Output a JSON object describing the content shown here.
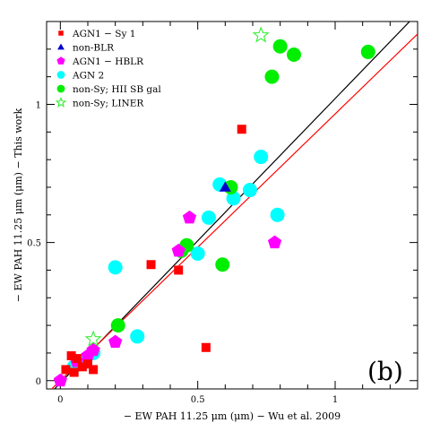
{
  "chart_data": {
    "type": "scatter",
    "panel_label": "(b)",
    "xlabel": "− EW PAH 11.25 μm (μm) − Wu et al. 2009",
    "ylabel": "− EW PAH 11.25 μm (μm) − This work",
    "xlim": [
      -0.05,
      1.3
    ],
    "ylim": [
      -0.03,
      1.3
    ],
    "xticks": [
      {
        "v": 0,
        "label": "0"
      },
      {
        "v": 0.5,
        "label": "0.5"
      },
      {
        "v": 1,
        "label": "1"
      }
    ],
    "yticks": [
      {
        "v": 0,
        "label": "0"
      },
      {
        "v": 0.5,
        "label": "0.5"
      },
      {
        "v": 1,
        "label": "1"
      }
    ],
    "legend_position": "top-left",
    "lines": [
      {
        "name": "",
        "color": "#000000",
        "x": [
          -0.05,
          1.3
        ],
        "y": [
          -0.06,
          1.33
        ]
      },
      {
        "name": "",
        "color": "#ff0000",
        "x": [
          -0.05,
          1.3
        ],
        "y": [
          -0.048,
          1.255
        ]
      }
    ],
    "series": [
      {
        "name": "AGN1 − Sy 1",
        "marker": "square",
        "color": "#ff0000",
        "points": [
          [
            0.02,
            0.04
          ],
          [
            0.04,
            0.09
          ],
          [
            0.06,
            0.08
          ],
          [
            0.05,
            0.03
          ],
          [
            0.08,
            0.05
          ],
          [
            0.1,
            0.06
          ],
          [
            0.12,
            0.04
          ],
          [
            0.33,
            0.42
          ],
          [
            0.43,
            0.4
          ],
          [
            0.53,
            0.12
          ],
          [
            0.66,
            0.91
          ]
        ]
      },
      {
        "name": "non-BLR",
        "marker": "triangle",
        "color": "#0000cc",
        "points": [
          [
            0.6,
            0.7
          ]
        ]
      },
      {
        "name": "AGN1 − HBLR",
        "marker": "pentagon",
        "color": "#ff00ff",
        "points": [
          [
            0.0,
            0.0
          ],
          [
            0.06,
            0.07
          ],
          [
            0.1,
            0.09
          ],
          [
            0.12,
            0.11
          ],
          [
            0.2,
            0.14
          ],
          [
            0.43,
            0.47
          ],
          [
            0.47,
            0.59
          ],
          [
            0.78,
            0.5
          ]
        ]
      },
      {
        "name": "AGN 2",
        "marker": "circle",
        "color": "#00ffff",
        "points": [
          [
            0.05,
            0.05
          ],
          [
            0.07,
            0.06
          ],
          [
            0.08,
            0.07
          ],
          [
            0.12,
            0.1
          ],
          [
            0.2,
            0.41
          ],
          [
            0.28,
            0.16
          ],
          [
            0.5,
            0.46
          ],
          [
            0.54,
            0.59
          ],
          [
            0.58,
            0.71
          ],
          [
            0.63,
            0.66
          ],
          [
            0.69,
            0.69
          ],
          [
            0.73,
            0.81
          ],
          [
            0.79,
            0.6
          ]
        ]
      },
      {
        "name": "non-Sy; HII SB gal",
        "marker": "circle",
        "color": "#00ee00",
        "points": [
          [
            0.21,
            0.2
          ],
          [
            0.44,
            0.47
          ],
          [
            0.46,
            0.49
          ],
          [
            0.59,
            0.42
          ],
          [
            0.62,
            0.7
          ],
          [
            0.77,
            1.1
          ],
          [
            0.8,
            1.21
          ],
          [
            0.85,
            1.18
          ],
          [
            1.12,
            1.19
          ]
        ]
      },
      {
        "name": "non-Sy; LINER",
        "marker": "star",
        "color": "#33ee33",
        "points": [
          [
            0.12,
            0.15
          ],
          [
            0.73,
            1.25
          ]
        ]
      }
    ]
  }
}
